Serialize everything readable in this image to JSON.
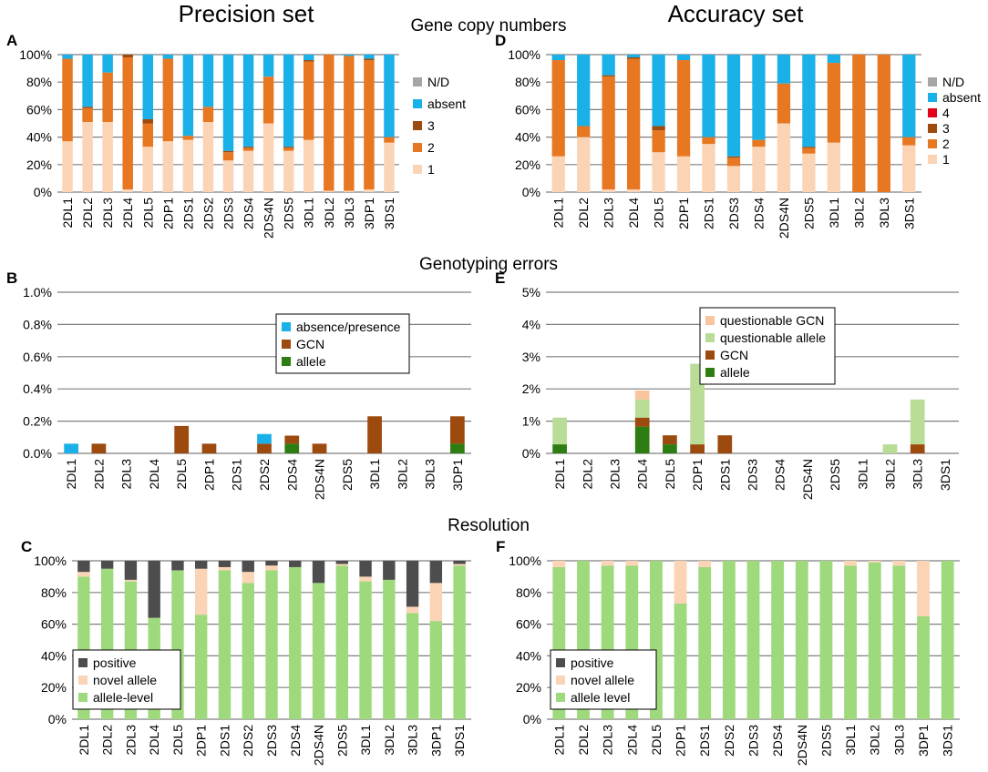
{
  "headings": {
    "precision_set": "Precision set",
    "accuracy_set": "Accuracy set",
    "row1": "Gene copy numbers",
    "row2": "Genotyping errors",
    "row3": "Resolution"
  },
  "colors": {
    "nd": "#a6a6a6",
    "absent": "#1ab0e8",
    "cn4": "#e2001a",
    "cn3": "#9c4a0e",
    "cn2": "#e87722",
    "cn1": "#fbd3b5",
    "absence_presence": "#1ab0e8",
    "gcn": "#9c4a0e",
    "allele": "#2e7d12",
    "questionable_gcn": "#f9c59f",
    "questionable_allele": "#b9dc96",
    "positive": "#4d4d4d",
    "novel_allele": "#fbd3b5",
    "allele_level": "#9ed97c",
    "grid": "#7f7f7f",
    "text": "#000000"
  },
  "chart_data": [
    {
      "id": "A",
      "panel_label": "A",
      "type": "bar",
      "stacked": true,
      "title": "Gene copy numbers",
      "categories": [
        "2DL1",
        "2DL2",
        "2DL3",
        "2DL4",
        "2DL5",
        "2DP1",
        "2DS1",
        "2DS2",
        "2DS3",
        "2DS4",
        "2DS4N",
        "2DS5",
        "3DL1",
        "3DL2",
        "3DL3",
        "3DP1",
        "3DS1"
      ],
      "ylim": [
        0,
        100
      ],
      "yticks": [
        0,
        20,
        40,
        60,
        80,
        100
      ],
      "ytick_labels": [
        "0%",
        "20%",
        "40%",
        "60%",
        "80%",
        "100%"
      ],
      "series": [
        {
          "name": "1",
          "color_key": "cn1",
          "values": [
            37,
            51,
            51,
            2,
            33,
            37,
            38,
            51,
            23,
            30,
            50,
            30,
            38,
            1,
            1,
            2,
            36
          ]
        },
        {
          "name": "2",
          "color_key": "cn2",
          "values": [
            60,
            10,
            36,
            96,
            17,
            60,
            3,
            11,
            6,
            2,
            34,
            2,
            57,
            99,
            98,
            94,
            4
          ]
        },
        {
          "name": "3",
          "color_key": "cn3",
          "values": [
            0,
            1,
            0,
            2,
            3,
            0,
            0,
            0,
            1,
            1,
            0,
            1,
            1,
            0,
            0,
            1,
            0
          ]
        },
        {
          "name": "absent",
          "color_key": "absent",
          "values": [
            3,
            38,
            13,
            0,
            47,
            3,
            59,
            38,
            70,
            67,
            16,
            67,
            4,
            0,
            1,
            3,
            60
          ]
        },
        {
          "name": "N/D",
          "color_key": "nd",
          "values": [
            0,
            0,
            0,
            0,
            0,
            0,
            0,
            0,
            0,
            0,
            0,
            0,
            0,
            0,
            0,
            0,
            0
          ]
        }
      ],
      "legend": [
        {
          "label": "N/D",
          "color_key": "nd"
        },
        {
          "label": "absent",
          "color_key": "absent"
        },
        {
          "label": "3",
          "color_key": "cn3"
        },
        {
          "label": "2",
          "color_key": "cn2"
        },
        {
          "label": "1",
          "color_key": "cn1"
        }
      ],
      "legend_position": "right",
      "legend_boxed": false
    },
    {
      "id": "D",
      "panel_label": "D",
      "type": "bar",
      "stacked": true,
      "title": "Gene copy numbers",
      "categories": [
        "2DL1",
        "2DL2",
        "2DL3",
        "2DL4",
        "2DL5",
        "2DP1",
        "2DS1",
        "2DS3",
        "2DS4",
        "2DS4N",
        "2DS5",
        "3DL1",
        "3DL2",
        "3DL3",
        "3DS1"
      ],
      "ylim": [
        0,
        100
      ],
      "yticks": [
        0,
        20,
        40,
        60,
        80,
        100
      ],
      "ytick_labels": [
        "0%",
        "20%",
        "40%",
        "60%",
        "80%",
        "100%"
      ],
      "series": [
        {
          "name": "1",
          "color_key": "cn1",
          "values": [
            26,
            40,
            2,
            2,
            29,
            26,
            35,
            19,
            33,
            50,
            28,
            36,
            0,
            0,
            34
          ]
        },
        {
          "name": "2",
          "color_key": "cn2",
          "values": [
            70,
            8,
            82,
            95,
            16,
            70,
            5,
            6,
            5,
            29,
            4,
            58,
            100,
            100,
            6
          ]
        },
        {
          "name": "3",
          "color_key": "cn3",
          "values": [
            0,
            0,
            1,
            1,
            3,
            0,
            0,
            1,
            0,
            0,
            1,
            0,
            0,
            0,
            0
          ]
        },
        {
          "name": "4",
          "color_key": "cn4",
          "values": [
            0,
            0,
            0,
            0,
            0,
            0,
            0,
            0,
            0,
            0,
            0,
            0,
            0,
            0,
            0
          ]
        },
        {
          "name": "absent",
          "color_key": "absent",
          "values": [
            4,
            52,
            15,
            2,
            52,
            4,
            60,
            74,
            62,
            21,
            67,
            6,
            0,
            0,
            60
          ]
        },
        {
          "name": "N/D",
          "color_key": "nd",
          "values": [
            0,
            0,
            0,
            0,
            0,
            0,
            0,
            0,
            0,
            0,
            0,
            0,
            0,
            0,
            0
          ]
        }
      ],
      "legend": [
        {
          "label": "N/D",
          "color_key": "nd"
        },
        {
          "label": "absent",
          "color_key": "absent"
        },
        {
          "label": "4",
          "color_key": "cn4"
        },
        {
          "label": "3",
          "color_key": "cn3"
        },
        {
          "label": "2",
          "color_key": "cn2"
        },
        {
          "label": "1",
          "color_key": "cn1"
        }
      ],
      "legend_position": "right",
      "legend_boxed": false
    },
    {
      "id": "B",
      "panel_label": "B",
      "type": "bar",
      "stacked": true,
      "title": "Genotyping errors",
      "categories": [
        "2DL1",
        "2DL2",
        "2DL3",
        "2DL4",
        "2DL5",
        "2DP1",
        "2DS1",
        "2DS2",
        "2DS4",
        "2DS4N",
        "2DS5",
        "3DL1",
        "3DL2",
        "3DL3",
        "3DP1"
      ],
      "ylim": [
        0,
        1.0
      ],
      "yticks": [
        0,
        0.2,
        0.4,
        0.6,
        0.8,
        1.0
      ],
      "ytick_labels": [
        "0.0%",
        "0.2%",
        "0.4%",
        "0.6%",
        "0.8%",
        "1.0%"
      ],
      "series": [
        {
          "name": "allele",
          "color_key": "allele",
          "values": [
            0,
            0,
            0,
            0,
            0,
            0,
            0,
            0,
            0.06,
            0,
            0,
            0,
            0,
            0,
            0.06
          ]
        },
        {
          "name": "GCN",
          "color_key": "gcn",
          "values": [
            0,
            0.06,
            0,
            0,
            0.17,
            0.06,
            0,
            0.06,
            0.05,
            0.06,
            0,
            0.23,
            0,
            0,
            0.17
          ]
        },
        {
          "name": "absence/presence",
          "color_key": "absence_presence",
          "values": [
            0.06,
            0,
            0,
            0,
            0,
            0,
            0,
            0.06,
            0,
            0,
            0,
            0,
            0,
            0,
            0
          ]
        }
      ],
      "legend": [
        {
          "label": "absence/presence",
          "color_key": "absence_presence"
        },
        {
          "label": "GCN",
          "color_key": "gcn"
        },
        {
          "label": "allele",
          "color_key": "allele"
        }
      ],
      "legend_position": "upper-right",
      "legend_boxed": true
    },
    {
      "id": "E",
      "panel_label": "E",
      "type": "bar",
      "stacked": true,
      "title": "Genotyping errors",
      "categories": [
        "2DL1",
        "2DL2",
        "2DL3",
        "2DL4",
        "2DL5",
        "2DP1",
        "2DS1",
        "2DS3",
        "2DS4",
        "2DS4N",
        "2DS5",
        "3DL1",
        "3DL2",
        "3DL3",
        "3DS1"
      ],
      "ylim": [
        0,
        5
      ],
      "yticks": [
        0,
        1,
        2,
        3,
        4,
        5
      ],
      "ytick_labels": [
        "0%",
        "1%",
        "2%",
        "3%",
        "4%",
        "5%"
      ],
      "series": [
        {
          "name": "allele",
          "color_key": "allele",
          "values": [
            0.28,
            0,
            0,
            0.83,
            0.28,
            0,
            0,
            0,
            0,
            0,
            0,
            0,
            0,
            0,
            0
          ]
        },
        {
          "name": "GCN",
          "color_key": "gcn",
          "values": [
            0,
            0,
            0,
            0.28,
            0.28,
            0.28,
            0.56,
            0,
            0,
            0,
            0,
            0,
            0,
            0.28,
            0
          ]
        },
        {
          "name": "questionable allele",
          "color_key": "questionable_allele",
          "values": [
            0.83,
            0,
            0,
            0.56,
            0,
            2.5,
            0,
            0,
            0,
            0,
            0,
            0,
            0.28,
            1.39,
            0
          ]
        },
        {
          "name": "questionable GCN",
          "color_key": "questionable_gcn",
          "values": [
            0,
            0,
            0,
            0.28,
            0,
            0,
            0,
            0,
            0,
            0,
            0,
            0,
            0,
            0,
            0
          ]
        }
      ],
      "legend": [
        {
          "label": "questionable GCN",
          "color_key": "questionable_gcn"
        },
        {
          "label": "questionable allele",
          "color_key": "questionable_allele"
        },
        {
          "label": "GCN",
          "color_key": "gcn"
        },
        {
          "label": "allele",
          "color_key": "allele"
        }
      ],
      "legend_position": "upper-right",
      "legend_boxed": true
    },
    {
      "id": "C",
      "panel_label": "C",
      "type": "bar",
      "stacked": true,
      "title": "Resolution",
      "categories": [
        "2DL1",
        "2DL2",
        "2DL3",
        "2DL4",
        "2DL5",
        "2DP1",
        "2DS1",
        "2DS2",
        "2DS3",
        "2DS4",
        "2DS4N",
        "2DS5",
        "3DL1",
        "3DL2",
        "3DL3",
        "3DP1",
        "3DS1"
      ],
      "ylim": [
        0,
        100
      ],
      "yticks": [
        0,
        20,
        40,
        60,
        80,
        100
      ],
      "ytick_labels": [
        "0%",
        "20%",
        "40%",
        "60%",
        "80%",
        "100%"
      ],
      "series": [
        {
          "name": "allele-level",
          "color_key": "allele_level",
          "values": [
            90,
            95,
            87,
            64,
            94,
            66,
            94,
            86,
            94,
            96,
            86,
            97,
            87,
            88,
            67,
            62,
            97
          ]
        },
        {
          "name": "novel allele",
          "color_key": "novel_allele",
          "values": [
            3,
            0,
            1,
            0,
            0,
            29,
            2,
            7,
            3,
            0,
            0,
            1,
            3,
            0,
            4,
            24,
            1
          ]
        },
        {
          "name": "positive",
          "color_key": "positive",
          "values": [
            7,
            5,
            12,
            36,
            6,
            5,
            4,
            7,
            3,
            4,
            14,
            2,
            10,
            12,
            29,
            14,
            2
          ]
        }
      ],
      "legend": [
        {
          "label": "positive",
          "color_key": "positive"
        },
        {
          "label": "novel allele",
          "color_key": "novel_allele"
        },
        {
          "label": "allele-level",
          "color_key": "allele_level"
        }
      ],
      "legend_position": "lower-left",
      "legend_boxed": true
    },
    {
      "id": "F",
      "panel_label": "F",
      "type": "bar",
      "stacked": true,
      "title": "Resolution",
      "categories": [
        "2DL1",
        "2DL2",
        "2DL3",
        "2DL4",
        "2DL5",
        "2DP1",
        "2DS1",
        "2DS2",
        "2DS3",
        "2DS4",
        "2DS4N",
        "2DS5",
        "3DL1",
        "3DL2",
        "3DL3",
        "3DP1",
        "3DS1"
      ],
      "ylim": [
        0,
        100
      ],
      "yticks": [
        0,
        20,
        40,
        60,
        80,
        100
      ],
      "ytick_labels": [
        "0%",
        "20%",
        "40%",
        "60%",
        "80%",
        "100%"
      ],
      "series": [
        {
          "name": "allele level",
          "color_key": "allele_level",
          "values": [
            96,
            100,
            97,
            97,
            100,
            73,
            96,
            100,
            100,
            100,
            100,
            100,
            97,
            99,
            97,
            65,
            100
          ]
        },
        {
          "name": "novel allele",
          "color_key": "novel_allele",
          "values": [
            4,
            0,
            3,
            3,
            0,
            27,
            4,
            0,
            0,
            0,
            0,
            0,
            3,
            1,
            3,
            35,
            0
          ]
        },
        {
          "name": "positive",
          "color_key": "positive",
          "values": [
            0,
            0,
            0,
            0,
            0,
            0,
            0,
            0,
            0,
            0,
            0,
            0,
            0,
            0,
            0,
            0,
            0
          ]
        }
      ],
      "legend": [
        {
          "label": "positive",
          "color_key": "positive"
        },
        {
          "label": "novel allele",
          "color_key": "novel_allele"
        },
        {
          "label": "allele level",
          "color_key": "allele_level"
        }
      ],
      "legend_position": "lower-left",
      "legend_boxed": true
    }
  ]
}
